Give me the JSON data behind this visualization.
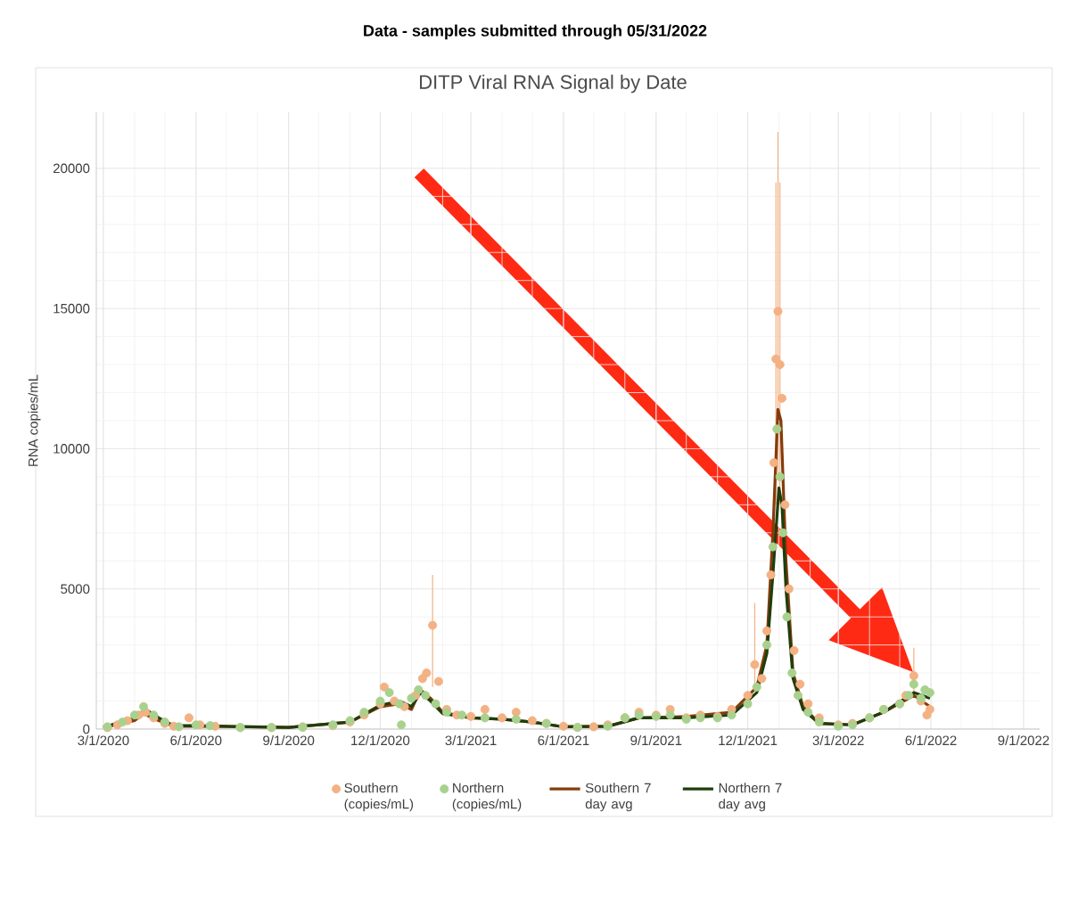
{
  "chart_data": {
    "type": "scatter",
    "title": "Data - samples submitted through 05/31/2022",
    "subtitle": "DITP Viral RNA Signal by Date",
    "ylabel": "RNA copies/mL",
    "xlim": [
      "2020-02-23",
      "2022-09-17"
    ],
    "ylim": [
      0,
      22000
    ],
    "xticks": [
      {
        "value": "2020-03-01",
        "label": "3/1/2020"
      },
      {
        "value": "2020-06-01",
        "label": "6/1/2020"
      },
      {
        "value": "2020-09-01",
        "label": "9/1/2020"
      },
      {
        "value": "2020-12-01",
        "label": "12/1/2020"
      },
      {
        "value": "2021-03-01",
        "label": "3/1/2021"
      },
      {
        "value": "2021-06-01",
        "label": "6/1/2021"
      },
      {
        "value": "2021-09-01",
        "label": "9/1/2021"
      },
      {
        "value": "2021-12-01",
        "label": "12/1/2021"
      },
      {
        "value": "2022-03-01",
        "label": "3/1/2022"
      },
      {
        "value": "2022-06-01",
        "label": "6/1/2022"
      },
      {
        "value": "2022-09-01",
        "label": "9/1/2022"
      }
    ],
    "yticks": [
      0,
      5000,
      10000,
      15000,
      20000
    ],
    "grid": true,
    "legend": "bottom",
    "series": [
      {
        "name": "Southern (copies/mL)",
        "color": "#f4b183",
        "x": [
          "2020-03-05",
          "2020-03-15",
          "2020-03-25",
          "2020-04-05",
          "2020-04-12",
          "2020-04-20",
          "2020-05-01",
          "2020-05-10",
          "2020-05-25",
          "2020-06-05",
          "2020-06-20",
          "2020-07-15",
          "2020-08-15",
          "2020-09-15",
          "2020-10-15",
          "2020-11-01",
          "2020-11-15",
          "2020-12-01",
          "2020-12-05",
          "2020-12-15",
          "2020-12-25",
          "2021-01-05",
          "2021-01-12",
          "2021-01-16",
          "2021-01-22",
          "2021-01-28",
          "2021-02-05",
          "2021-02-15",
          "2021-03-01",
          "2021-03-15",
          "2021-04-01",
          "2021-04-15",
          "2021-05-01",
          "2021-05-15",
          "2021-06-01",
          "2021-06-15",
          "2021-07-01",
          "2021-07-15",
          "2021-08-01",
          "2021-08-15",
          "2021-09-01",
          "2021-09-15",
          "2021-10-01",
          "2021-10-15",
          "2021-11-01",
          "2021-11-15",
          "2021-12-01",
          "2021-12-08",
          "2021-12-15",
          "2021-12-20",
          "2021-12-24",
          "2021-12-27",
          "2021-12-29",
          "2021-12-31",
          "2022-01-02",
          "2022-01-04",
          "2022-01-07",
          "2022-01-11",
          "2022-01-16",
          "2022-01-22",
          "2022-01-30",
          "2022-02-10",
          "2022-03-01",
          "2022-03-15",
          "2022-04-01",
          "2022-04-15",
          "2022-05-01",
          "2022-05-07",
          "2022-05-15",
          "2022-05-22",
          "2022-05-28",
          "2022-05-31"
        ],
        "values": [
          50,
          150,
          300,
          500,
          600,
          400,
          200,
          100,
          400,
          150,
          100,
          60,
          60,
          80,
          120,
          250,
          500,
          900,
          1500,
          1000,
          800,
          1200,
          1800,
          2000,
          3700,
          1700,
          700,
          500,
          450,
          700,
          400,
          600,
          300,
          200,
          100,
          60,
          80,
          150,
          400,
          600,
          500,
          700,
          400,
          500,
          450,
          700,
          1200,
          2300,
          1800,
          3500,
          5500,
          9500,
          13200,
          14900,
          13000,
          11800,
          8000,
          5000,
          2800,
          1600,
          900,
          400,
          150,
          200,
          400,
          700,
          900,
          1200,
          1900,
          1000,
          500,
          700
        ],
        "errors": [
          null,
          null,
          null,
          null,
          null,
          null,
          null,
          null,
          null,
          null,
          null,
          null,
          null,
          null,
          null,
          null,
          null,
          null,
          null,
          null,
          null,
          null,
          null,
          null,
          [
            1500,
            5500
          ],
          null,
          null,
          null,
          null,
          null,
          null,
          null,
          null,
          null,
          null,
          null,
          null,
          null,
          null,
          null,
          null,
          null,
          null,
          null,
          null,
          null,
          null,
          [
            1500,
            4500
          ],
          null,
          null,
          null,
          null,
          [
            8000,
            19500
          ],
          [
            9000,
            21300
          ],
          [
            8000,
            19500
          ],
          null,
          null,
          null,
          null,
          null,
          null,
          null,
          null,
          null,
          null,
          null,
          null,
          null,
          [
            1200,
            2900
          ],
          null,
          null,
          null
        ]
      },
      {
        "name": "Northern (copies/mL)",
        "color": "#a9d18e",
        "x": [
          "2020-03-05",
          "2020-03-20",
          "2020-04-01",
          "2020-04-10",
          "2020-04-20",
          "2020-05-01",
          "2020-05-15",
          "2020-06-01",
          "2020-06-15",
          "2020-07-15",
          "2020-08-15",
          "2020-09-15",
          "2020-10-15",
          "2020-11-01",
          "2020-11-15",
          "2020-12-01",
          "2020-12-10",
          "2020-12-20",
          "2020-12-22",
          "2021-01-01",
          "2021-01-08",
          "2021-01-15",
          "2021-01-25",
          "2021-02-05",
          "2021-02-20",
          "2021-03-15",
          "2021-04-15",
          "2021-05-15",
          "2021-06-15",
          "2021-07-15",
          "2021-08-01",
          "2021-08-15",
          "2021-09-01",
          "2021-09-15",
          "2021-10-01",
          "2021-10-15",
          "2021-11-01",
          "2021-11-15",
          "2021-12-01",
          "2021-12-10",
          "2021-12-20",
          "2021-12-26",
          "2021-12-30",
          "2022-01-02",
          "2022-01-05",
          "2022-01-09",
          "2022-01-14",
          "2022-01-20",
          "2022-01-30",
          "2022-02-10",
          "2022-03-01",
          "2022-03-15",
          "2022-04-01",
          "2022-04-15",
          "2022-05-01",
          "2022-05-10",
          "2022-05-15",
          "2022-05-22",
          "2022-05-26",
          "2022-05-31"
        ],
        "values": [
          80,
          250,
          500,
          800,
          500,
          250,
          80,
          150,
          120,
          50,
          50,
          60,
          150,
          300,
          600,
          1000,
          1300,
          900,
          150,
          1100,
          1400,
          1200,
          900,
          600,
          500,
          400,
          350,
          200,
          60,
          100,
          400,
          500,
          450,
          500,
          350,
          400,
          400,
          500,
          900,
          1500,
          3000,
          6500,
          10700,
          9000,
          7000,
          4000,
          2000,
          1200,
          600,
          250,
          100,
          150,
          400,
          700,
          900,
          1200,
          1600,
          1100,
          1400,
          1300
        ]
      },
      {
        "name": "Southern 7 day avg",
        "type": "line",
        "marker": "none",
        "color": "#843c0c",
        "x": [
          "2020-03-01",
          "2020-04-01",
          "2020-04-10",
          "2020-04-25",
          "2020-05-10",
          "2020-06-01",
          "2020-09-01",
          "2020-11-01",
          "2020-12-01",
          "2020-12-20",
          "2021-01-01",
          "2021-01-10",
          "2021-01-20",
          "2021-02-01",
          "2021-03-01",
          "2021-04-01",
          "2021-05-01",
          "2021-06-01",
          "2021-07-15",
          "2021-08-15",
          "2021-10-01",
          "2021-11-15",
          "2021-12-10",
          "2021-12-20",
          "2021-12-26",
          "2021-12-31",
          "2022-01-03",
          "2022-01-08",
          "2022-01-15",
          "2022-01-25",
          "2022-02-10",
          "2022-03-15",
          "2022-04-15",
          "2022-05-15",
          "2022-05-31"
        ],
        "values": [
          50,
          300,
          550,
          300,
          100,
          100,
          60,
          250,
          800,
          900,
          700,
          1400,
          1100,
          600,
          400,
          350,
          250,
          80,
          100,
          400,
          450,
          600,
          1500,
          3000,
          7000,
          11400,
          11000,
          6000,
          2000,
          800,
          200,
          150,
          600,
          1200,
          800
        ]
      },
      {
        "name": "Northern 7 day avg",
        "type": "line",
        "marker": "none",
        "color": "#1f3d0c",
        "x": [
          "2020-03-01",
          "2020-04-01",
          "2020-04-12",
          "2020-04-25",
          "2020-05-10",
          "2020-06-01",
          "2020-09-01",
          "2020-11-01",
          "2020-12-01",
          "2020-12-20",
          "2021-01-01",
          "2021-01-10",
          "2021-01-20",
          "2021-02-01",
          "2021-03-01",
          "2021-04-01",
          "2021-05-01",
          "2021-06-01",
          "2021-07-15",
          "2021-08-15",
          "2021-10-01",
          "2021-11-15",
          "2021-12-10",
          "2021-12-20",
          "2021-12-26",
          "2022-01-01",
          "2022-01-04",
          "2022-01-08",
          "2022-01-15",
          "2022-01-25",
          "2022-02-10",
          "2022-03-15",
          "2022-04-15",
          "2022-05-15",
          "2022-05-31"
        ],
        "values": [
          60,
          400,
          700,
          400,
          120,
          120,
          60,
          250,
          850,
          1000,
          800,
          1300,
          1000,
          550,
          400,
          350,
          250,
          80,
          100,
          400,
          400,
          500,
          1300,
          2700,
          5500,
          8600,
          8000,
          5000,
          1800,
          700,
          200,
          150,
          600,
          1300,
          1100
        ]
      }
    ]
  }
}
